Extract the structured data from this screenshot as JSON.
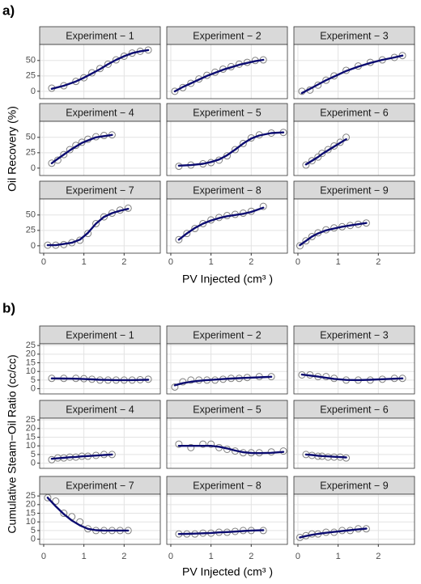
{
  "chart_data": [
    {
      "type": "facet-scatter-line",
      "label": "a)",
      "x_label": "PV Injected (cm³ )",
      "y_label": "Oil Recovery (%)",
      "xlim": [
        -0.1,
        2.9
      ],
      "xticks": [
        0,
        1,
        2
      ],
      "ylim": [
        -12,
        76
      ],
      "yticks": [
        0,
        25,
        50
      ],
      "grid": true,
      "point_color": "#808080",
      "line_color": "#0b0b70",
      "strip_color": "#d9d9d9",
      "facets": [
        {
          "title": "Experiment − 1",
          "x": [
            0.2,
            0.5,
            0.8,
            1.0,
            1.2,
            1.4,
            1.6,
            1.8,
            2.0,
            2.2,
            2.4,
            2.6
          ],
          "values": [
            5,
            9,
            16,
            22,
            30,
            37,
            44,
            51,
            57,
            62,
            65,
            67
          ],
          "fit": [
            4,
            9,
            16,
            22,
            29,
            36,
            44,
            51,
            57,
            62,
            65,
            67
          ]
        },
        {
          "title": "Experiment − 2",
          "x": [
            0.1,
            0.3,
            0.5,
            0.7,
            0.9,
            1.1,
            1.3,
            1.5,
            1.7,
            1.9,
            2.1,
            2.3
          ],
          "values": [
            0,
            6,
            13,
            20,
            26,
            31,
            36,
            40,
            44,
            47,
            50,
            51
          ],
          "fit": [
            0,
            7,
            13,
            19,
            25,
            30,
            35,
            39,
            43,
            46,
            49,
            51
          ]
        },
        {
          "title": "Experiment − 3",
          "x": [
            0.1,
            0.3,
            0.5,
            0.7,
            0.9,
            1.2,
            1.5,
            1.8,
            2.1,
            2.4,
            2.6
          ],
          "values": [
            0,
            2,
            10,
            18,
            25,
            34,
            41,
            47,
            51,
            55,
            58
          ],
          "fit": [
            -3,
            4,
            11,
            18,
            24,
            33,
            40,
            46,
            51,
            55,
            58
          ]
        },
        {
          "title": "Experiment − 4",
          "x": [
            0.2,
            0.35,
            0.5,
            0.65,
            0.8,
            0.95,
            1.1,
            1.3,
            1.5,
            1.7
          ],
          "values": [
            8,
            13,
            22,
            30,
            37,
            42,
            47,
            51,
            53,
            54
          ],
          "fit": [
            8,
            15,
            22,
            29,
            35,
            41,
            45,
            50,
            52,
            54
          ]
        },
        {
          "title": "Experiment − 5",
          "x": [
            0.2,
            0.5,
            0.8,
            1.0,
            1.2,
            1.4,
            1.6,
            1.8,
            2.0,
            2.2,
            2.5,
            2.8
          ],
          "values": [
            3,
            5,
            7,
            9,
            13,
            20,
            30,
            40,
            49,
            54,
            57,
            58
          ],
          "fit": [
            4,
            5,
            7,
            10,
            14,
            21,
            30,
            40,
            48,
            53,
            57,
            58
          ]
        },
        {
          "title": "Experiment − 6",
          "x": [
            0.2,
            0.35,
            0.5,
            0.6,
            0.75,
            0.9,
            1.05,
            1.2
          ],
          "values": [
            5,
            12,
            18,
            24,
            30,
            36,
            42,
            50
          ],
          "fit": [
            6,
            12,
            18,
            23,
            29,
            35,
            41,
            47
          ]
        },
        {
          "title": "Experiment − 7",
          "x": [
            0.1,
            0.3,
            0.5,
            0.7,
            0.9,
            1.1,
            1.3,
            1.5,
            1.7,
            1.9,
            2.1
          ],
          "values": [
            1,
            1,
            2,
            5,
            9,
            20,
            36,
            47,
            53,
            58,
            61
          ],
          "fit": [
            1,
            1,
            3,
            5,
            10,
            21,
            36,
            47,
            53,
            57,
            60
          ]
        },
        {
          "title": "Experiment − 8",
          "x": [
            0.2,
            0.4,
            0.6,
            0.8,
            1.0,
            1.2,
            1.4,
            1.6,
            1.8,
            2.0,
            2.3
          ],
          "values": [
            10,
            20,
            28,
            36,
            42,
            46,
            49,
            51,
            53,
            56,
            64
          ],
          "fit": [
            10,
            20,
            29,
            36,
            41,
            45,
            48,
            50,
            52,
            55,
            62
          ]
        },
        {
          "title": "Experiment − 9",
          "x": [
            0.05,
            0.2,
            0.35,
            0.5,
            0.7,
            0.9,
            1.1,
            1.3,
            1.5,
            1.7
          ],
          "values": [
            0,
            8,
            15,
            21,
            26,
            29,
            31,
            33,
            35,
            37
          ],
          "fit": [
            1,
            8,
            15,
            20,
            25,
            28,
            31,
            33,
            35,
            37
          ]
        }
      ]
    },
    {
      "type": "facet-scatter-line",
      "label": "b)",
      "x_label": "PV Injected (cm³ )",
      "y_label": "Cumulative Steam−Oil Ratio (cc/cc)",
      "xlim": [
        -0.1,
        2.9
      ],
      "xticks": [
        0,
        1,
        2
      ],
      "ylim": [
        -3,
        26
      ],
      "yticks": [
        0,
        5,
        10,
        15,
        20,
        25
      ],
      "grid": true,
      "point_color": "#808080",
      "line_color": "#0b0b70",
      "strip_color": "#d9d9d9",
      "facets": [
        {
          "title": "Experiment − 1",
          "x": [
            0.2,
            0.5,
            0.8,
            1.0,
            1.2,
            1.4,
            1.6,
            1.8,
            2.0,
            2.2,
            2.4,
            2.6
          ],
          "values": [
            6,
            6,
            6,
            5.8,
            5.5,
            5,
            5,
            5,
            5,
            5,
            5.2,
            5.5
          ],
          "fit": [
            6,
            5.9,
            5.8,
            5.6,
            5.4,
            5.2,
            5.1,
            5,
            5,
            5,
            5.1,
            5.2
          ]
        },
        {
          "title": "Experiment − 2",
          "x": [
            0.1,
            0.3,
            0.5,
            0.7,
            0.9,
            1.1,
            1.3,
            1.5,
            1.7,
            1.9,
            2.2,
            2.5
          ],
          "values": [
            1,
            4,
            5,
            5,
            5,
            5,
            5.5,
            6,
            6,
            6.5,
            7,
            7
          ],
          "fit": [
            2,
            3.2,
            4,
            4.6,
            5,
            5.3,
            5.6,
            5.9,
            6.1,
            6.3,
            6.6,
            6.9
          ]
        },
        {
          "title": "Experiment − 3",
          "x": [
            0.1,
            0.3,
            0.5,
            0.7,
            0.9,
            1.2,
            1.5,
            1.8,
            2.1,
            2.4,
            2.6
          ],
          "values": [
            8,
            8,
            7,
            7,
            6,
            5,
            5,
            5,
            5.5,
            6,
            6
          ],
          "fit": [
            8.2,
            7.6,
            7,
            6.3,
            5.7,
            5.1,
            5,
            5.2,
            5.5,
            5.8,
            6
          ]
        },
        {
          "title": "Experiment − 4",
          "x": [
            0.2,
            0.35,
            0.5,
            0.65,
            0.8,
            0.95,
            1.1,
            1.3,
            1.5,
            1.7
          ],
          "values": [
            2,
            3,
            3,
            3.5,
            3.5,
            4,
            4,
            4.5,
            5,
            5
          ],
          "fit": [
            2.5,
            2.8,
            3.1,
            3.4,
            3.6,
            3.9,
            4.1,
            4.4,
            4.7,
            5
          ]
        },
        {
          "title": "Experiment − 5",
          "x": [
            0.2,
            0.5,
            0.8,
            1.0,
            1.2,
            1.4,
            1.6,
            1.8,
            2.0,
            2.2,
            2.5,
            2.8
          ],
          "values": [
            11,
            9,
            11,
            11,
            9,
            8,
            7,
            6,
            6,
            6,
            6.5,
            7
          ],
          "fit": [
            10,
            10,
            10,
            10,
            9.5,
            8.5,
            7.3,
            6.3,
            5.9,
            5.8,
            6,
            6.5
          ]
        },
        {
          "title": "Experiment − 6",
          "x": [
            0.2,
            0.35,
            0.5,
            0.6,
            0.75,
            0.9,
            1.05,
            1.2
          ],
          "values": [
            5,
            4.5,
            4,
            4,
            3.5,
            3.5,
            3.5,
            3
          ],
          "fit": [
            5,
            4.7,
            4.3,
            4.1,
            3.9,
            3.7,
            3.5,
            3.3
          ]
        },
        {
          "title": "Experiment − 7",
          "x": [
            0.1,
            0.3,
            0.5,
            0.7,
            0.9,
            1.1,
            1.3,
            1.5,
            1.7,
            1.9,
            2.1
          ],
          "values": [
            24,
            22,
            15,
            13,
            10,
            6,
            5,
            5,
            5,
            5,
            5
          ],
          "fit": [
            24,
            19,
            14.5,
            10.8,
            8,
            6,
            5.2,
            5,
            5,
            5,
            5
          ]
        },
        {
          "title": "Experiment − 8",
          "x": [
            0.2,
            0.4,
            0.6,
            0.8,
            1.0,
            1.2,
            1.4,
            1.6,
            1.8,
            2.0,
            2.3
          ],
          "values": [
            3,
            3,
            3,
            3.5,
            3.5,
            4,
            4,
            4.5,
            5,
            5,
            5
          ],
          "fit": [
            3,
            3.1,
            3.2,
            3.4,
            3.6,
            3.9,
            4.1,
            4.4,
            4.7,
            5,
            5.2
          ]
        },
        {
          "title": "Experiment − 9",
          "x": [
            0.05,
            0.2,
            0.35,
            0.5,
            0.7,
            0.9,
            1.1,
            1.3,
            1.5,
            1.7
          ],
          "values": [
            1,
            2,
            3,
            3,
            4,
            4,
            5,
            5,
            6,
            6
          ],
          "fit": [
            1,
            1.8,
            2.5,
            3.1,
            3.7,
            4.2,
            4.7,
            5.2,
            5.7,
            6.1
          ]
        }
      ]
    }
  ]
}
